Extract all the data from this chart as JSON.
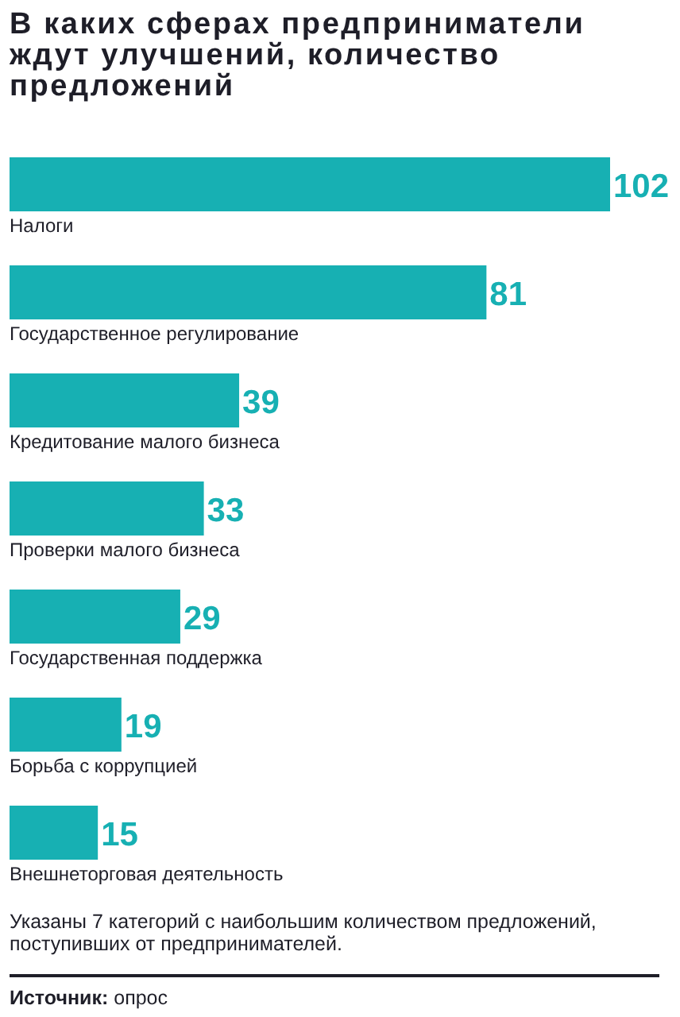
{
  "chart_data": {
    "type": "bar",
    "orientation": "horizontal",
    "title": "В каких сферах предприниматели ждут улучшений, количество предложений",
    "categories": [
      "Налоги",
      "Государственное регулирование",
      "Кредитование малого бизнеса",
      "Проверки малого бизнеса",
      "Государственная поддержка",
      "Борьба с коррупцией",
      "Внешнеторговая деятельность"
    ],
    "values": [
      102,
      81,
      39,
      33,
      29,
      19,
      15
    ],
    "color": "#17b0b3",
    "data_labels": true,
    "tick_labels": "y",
    "annotations": [
      "Указаны 7 категорий с наибольшим количеством предложений, поступивших от предпринимателей.",
      "Источник: опрос"
    ]
  }
}
